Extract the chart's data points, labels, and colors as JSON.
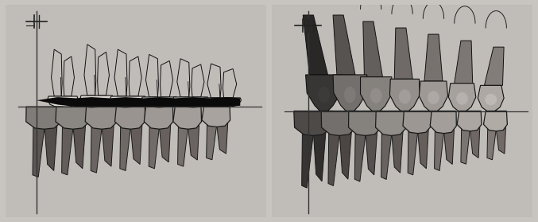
{
  "fig_width": 6.77,
  "fig_height": 2.79,
  "dpi": 100,
  "bg_color": "#c8c4c0",
  "panel_bg": "#c0bcb8",
  "line_color": "#222222",
  "dark_fill": "#111111",
  "tooth_white": "#e8e5e0",
  "tooth_mid": "#a0a09a",
  "tooth_dark": "#606060",
  "root_dark": "#505050"
}
